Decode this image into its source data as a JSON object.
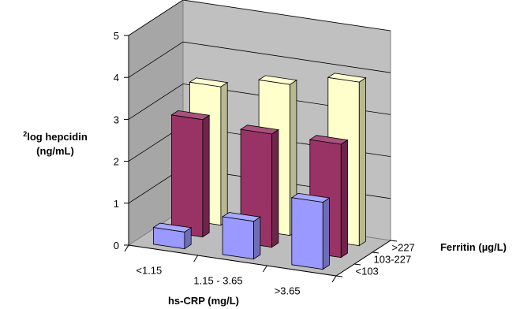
{
  "chart_data": {
    "type": "bar",
    "subtype": "3d-clustered",
    "title": "",
    "ylabel_super": "2",
    "ylabel_line1": "log hepcidin",
    "ylabel_line2": "(ng/mL)",
    "xlabel": "hs-CRP (mg/L)",
    "zlabel": "Ferritin (µg/L)",
    "ylim": [
      0,
      5
    ],
    "yticks": [
      "0",
      "1",
      "2",
      "3",
      "4",
      "5"
    ],
    "grid": true,
    "categories": [
      "<1.15",
      "1.15 - 3.65",
      ">3.65"
    ],
    "series": [
      {
        "name": "<103",
        "values": [
          0.4,
          0.9,
          1.6
        ],
        "color": "#9999ff"
      },
      {
        "name": "103-227",
        "values": [
          2.8,
          2.7,
          2.7
        ],
        "color": "#993366"
      },
      {
        "name": ">227",
        "values": [
          3.3,
          3.6,
          3.9
        ],
        "color": "#ffffcc"
      }
    ]
  }
}
